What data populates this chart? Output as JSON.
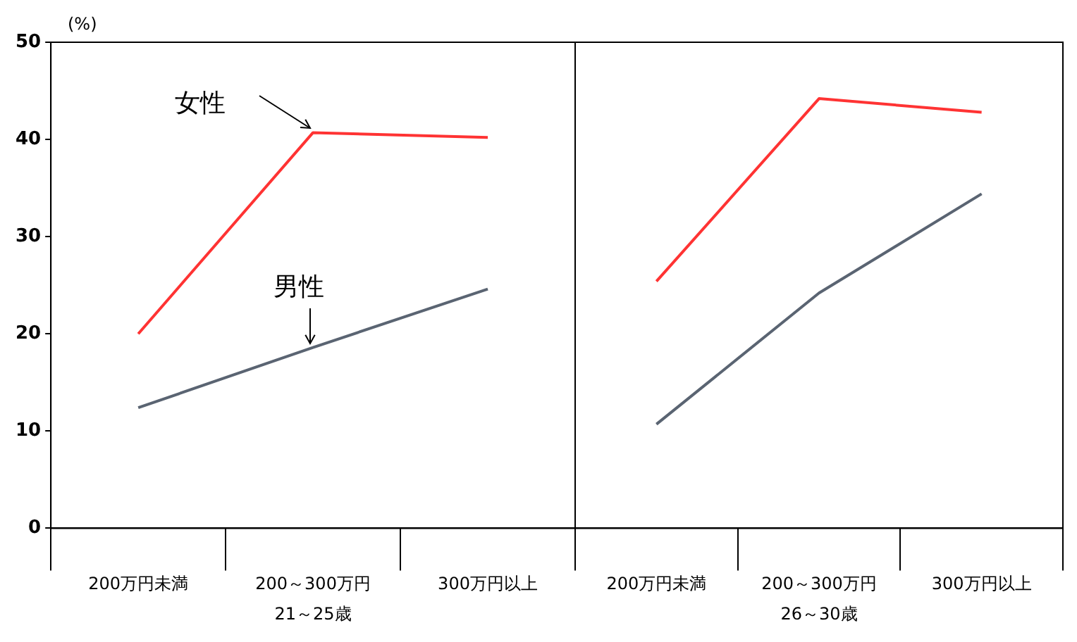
{
  "chart_data": [
    {
      "type": "line",
      "ylabel": "(%)",
      "xlabel": "21～25歳",
      "categories": [
        "200万円未満",
        "200～300万円",
        "300万円以上"
      ],
      "ylim": [
        0,
        50
      ],
      "yticks": [
        0,
        10,
        20,
        30,
        40,
        50
      ],
      "grid": false,
      "legend": false,
      "marker": "none",
      "line_style": "solid",
      "series": [
        {
          "name": "女性",
          "color": "#ff3333",
          "values": [
            20,
            40.7,
            40.2
          ]
        },
        {
          "name": "男性",
          "color": "#5a6472",
          "values": [
            12.4,
            18.6,
            24.6
          ]
        }
      ]
    },
    {
      "type": "line",
      "xlabel": "26～30歳",
      "categories": [
        "200万円未満",
        "200～300万円",
        "300万円以上"
      ],
      "ylim": [
        0,
        50
      ],
      "yticks": [
        0,
        10,
        20,
        30,
        40,
        50
      ],
      "tick_labels": "x",
      "grid": false,
      "legend": false,
      "marker": "none",
      "line_style": "solid",
      "series": [
        {
          "color": "#ff3333",
          "values": [
            25.4,
            44.2,
            42.8
          ]
        },
        {
          "color": "#5a6472",
          "values": [
            10.7,
            24.2,
            34.4
          ]
        }
      ]
    }
  ]
}
